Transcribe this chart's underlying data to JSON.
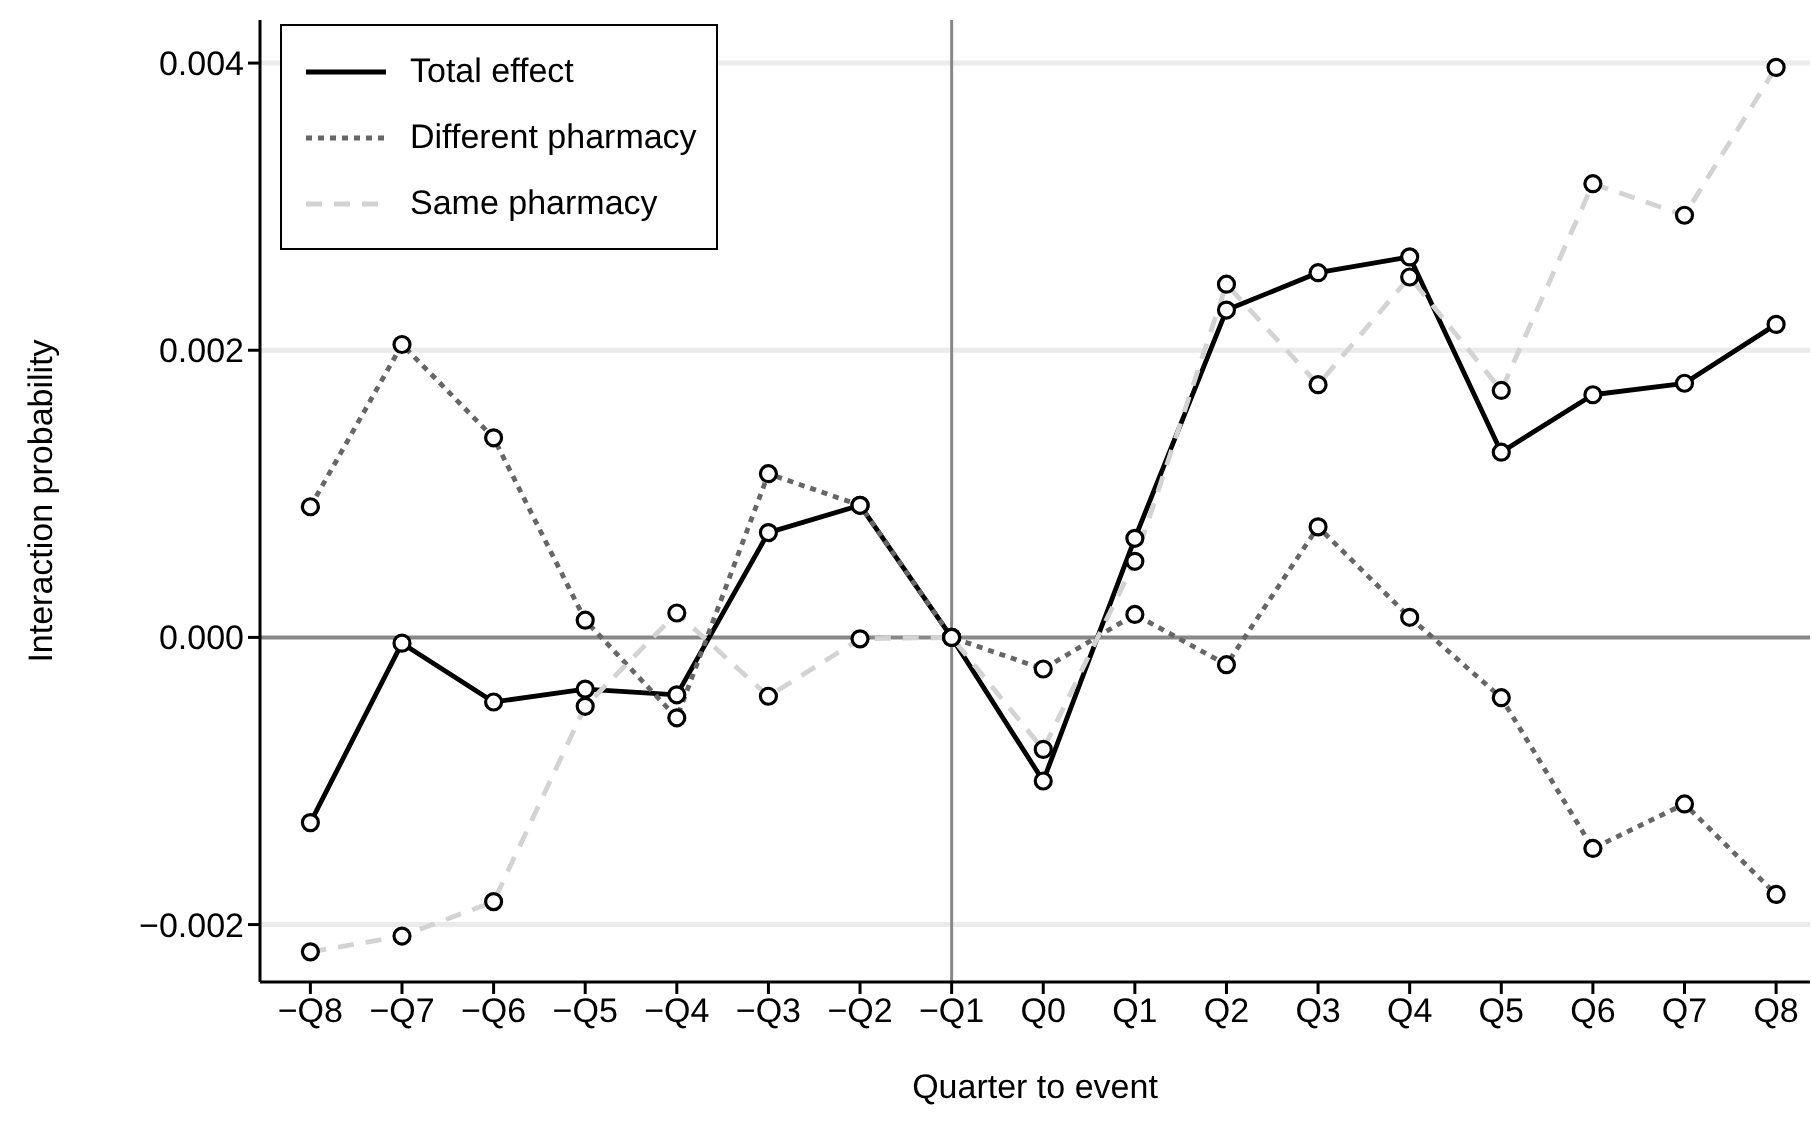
{
  "chart_data": {
    "type": "line",
    "xlabel": "Quarter to event",
    "ylabel": "Interaction probability",
    "categories": [
      "−Q8",
      "−Q7",
      "−Q6",
      "−Q5",
      "−Q4",
      "−Q3",
      "−Q2",
      "−Q1",
      "Q0",
      "Q1",
      "Q2",
      "Q3",
      "Q4",
      "Q5",
      "Q6",
      "Q7",
      "Q8"
    ],
    "series": [
      {
        "name": "Total effect",
        "color": "#000000",
        "line_style": "solid",
        "values": [
          -0.00129,
          -4e-05,
          -0.00045,
          -0.00036,
          -0.0004,
          0.00073,
          0.00092,
          0,
          -0.001,
          0.00069,
          0.00228,
          0.00254,
          0.00265,
          0.00129,
          0.00169,
          0.00177,
          0.00218
        ]
      },
      {
        "name": "Different pharmacy",
        "color": "#666666",
        "line_style": "dotted",
        "values": [
          0.00091,
          0.00204,
          0.00139,
          0.00012,
          -0.00056,
          0.00114,
          0.00092,
          0,
          -0.00022,
          0.00016,
          -0.00019,
          0.00077,
          0.00014,
          -0.00042,
          -0.00147,
          -0.00116,
          -0.00179
        ]
      },
      {
        "name": "Same pharmacy",
        "color": "#d3d3d3",
        "line_style": "dashed",
        "values": [
          -0.00219,
          -0.00208,
          -0.00184,
          -0.00048,
          0.00017,
          -0.00041,
          -1e-05,
          0,
          -0.00078,
          0.00053,
          0.00246,
          0.00176,
          0.00251,
          0.00172,
          0.00316,
          0.00294,
          0.00397
        ]
      }
    ],
    "ylim": [
      -0.0024,
      0.0043
    ],
    "yticks": [
      {
        "value": -0.002,
        "label": "−0.002"
      },
      {
        "value": 0,
        "label": "0.000"
      },
      {
        "value": 0.002,
        "label": "0.002"
      },
      {
        "value": 0.004,
        "label": "0.004"
      }
    ],
    "grid": "y",
    "legend": "top left",
    "marker": "circle",
    "ref_lines": [
      {
        "axis": "x",
        "value": "−Q1",
        "color": "#888888"
      },
      {
        "axis": "y",
        "value": 0,
        "color": "#888888"
      }
    ]
  }
}
